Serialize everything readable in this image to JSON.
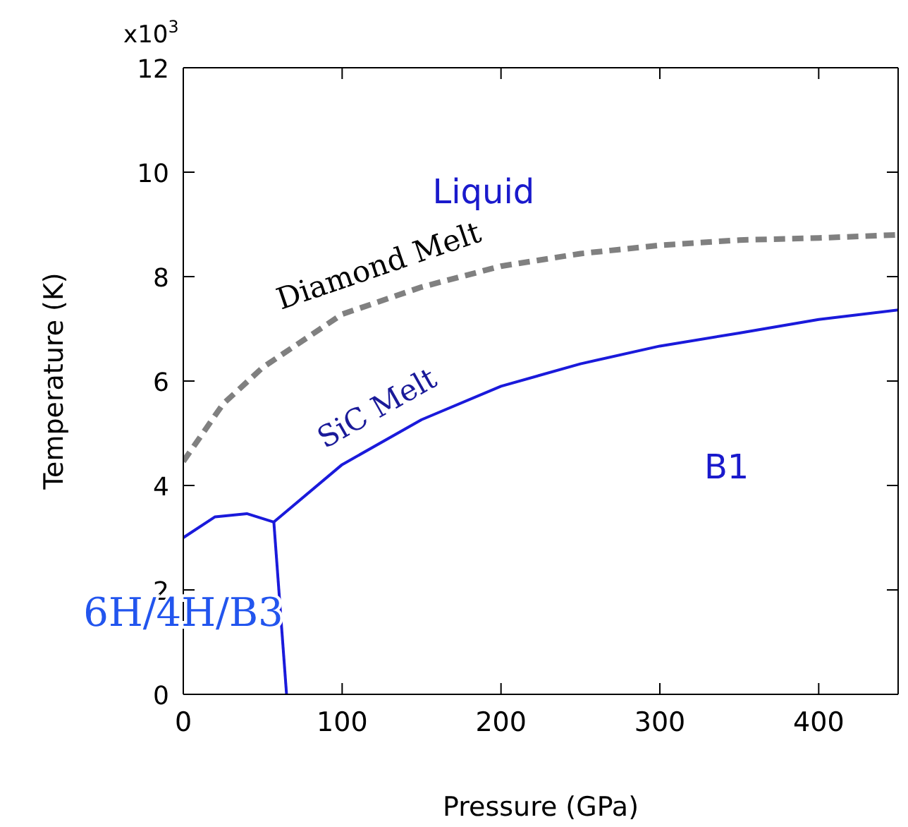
{
  "chart_data": {
    "type": "line",
    "xlabel": "Pressure (GPa)",
    "ylabel": "Temperature (K)",
    "xlim": [
      0,
      450
    ],
    "xticks": [
      0,
      100,
      200,
      300,
      400
    ],
    "ylim": [
      0,
      12
    ],
    "yticks": [
      0,
      2,
      4,
      6,
      8,
      10,
      12
    ],
    "marker": "none",
    "series": [
      {
        "name": "Diamond Melt",
        "color": "#808080",
        "line_style": "dashed",
        "x": [
          0,
          25,
          50,
          100,
          150,
          200,
          250,
          300,
          350,
          400,
          450
        ],
        "values": [
          4.46,
          5.56,
          6.26,
          7.28,
          7.8,
          8.2,
          8.44,
          8.6,
          8.7,
          8.74,
          8.8
        ]
      },
      {
        "name": "SiC Melt",
        "color": "#1a1adb",
        "line_style": "solid",
        "x": [
          0,
          20,
          40,
          57,
          100,
          150,
          200,
          250,
          300,
          350,
          400,
          450
        ],
        "values": [
          3.0,
          3.4,
          3.46,
          3.3,
          4.4,
          5.26,
          5.9,
          6.33,
          6.67,
          6.92,
          7.18,
          7.36
        ]
      },
      {
        "color": "#1a1adb",
        "line_style": "solid",
        "x": [
          57,
          65
        ],
        "values": [
          3.3,
          0
        ]
      }
    ],
    "annotations": [
      "Liquid",
      "B1",
      "6H/4H/B3",
      "x10$^{3}$"
    ]
  }
}
